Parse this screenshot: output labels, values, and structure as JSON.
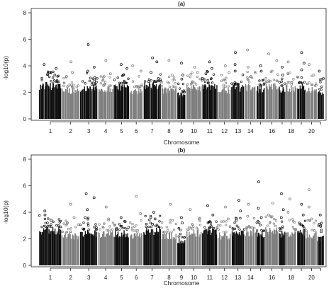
{
  "chart_data": [
    {
      "type": "scatter",
      "title": "(a)",
      "xlabel": "Chromosome",
      "ylabel": "-log10(p)",
      "ylim": [
        0,
        8
      ],
      "yticks": [
        0,
        2,
        4,
        6,
        8
      ],
      "grid": false,
      "x_tick_labels": [
        "1",
        "2",
        "3",
        "4",
        "5",
        "6",
        "7",
        "8",
        "9",
        "10",
        "11",
        "12",
        "13",
        "14",
        "16",
        "18",
        "20"
      ],
      "chromosomes": [
        "1",
        "2",
        "3",
        "4",
        "5",
        "6",
        "7",
        "8",
        "9",
        "10",
        "11",
        "12",
        "13",
        "14",
        "15",
        "16",
        "17",
        "18",
        "19",
        "20",
        "21"
      ],
      "chromosome_colors": [
        "#111111",
        "#7f7f7f"
      ],
      "body_max": [
        2.8,
        2.4,
        2.6,
        2.5,
        2.7,
        2.4,
        2.8,
        2.4,
        2.0,
        2.6,
        2.7,
        2.4,
        2.6,
        2.7,
        2.5,
        2.8,
        2.5,
        2.6,
        2.7,
        2.5,
        2.2
      ],
      "top_hits": [
        {
          "chr": "1",
          "values": [
            4.1,
            3.8,
            3.5,
            3.3
          ]
        },
        {
          "chr": "2",
          "values": [
            4.3,
            3.5,
            3.2
          ]
        },
        {
          "chr": "3",
          "values": [
            5.6,
            3.9,
            3.6,
            3.1
          ]
        },
        {
          "chr": "4",
          "values": [
            4.4,
            3.4,
            3.2
          ]
        },
        {
          "chr": "5",
          "values": [
            4.1,
            3.8,
            3.3
          ]
        },
        {
          "chr": "6",
          "values": [
            4.0,
            3.6
          ]
        },
        {
          "chr": "7",
          "values": [
            4.6,
            4.3,
            3.5
          ]
        },
        {
          "chr": "8",
          "values": [
            4.4,
            3.3
          ]
        },
        {
          "chr": "9",
          "values": [
            4.2,
            3.3,
            3.0
          ]
        },
        {
          "chr": "10",
          "values": [
            3.9,
            3.5
          ]
        },
        {
          "chr": "11",
          "values": [
            4.3,
            3.8,
            3.4
          ]
        },
        {
          "chr": "12",
          "values": [
            4.0,
            3.5
          ]
        },
        {
          "chr": "13",
          "values": [
            5.0,
            4.1,
            3.6
          ]
        },
        {
          "chr": "14",
          "values": [
            5.2,
            3.9,
            3.2
          ]
        },
        {
          "chr": "15",
          "values": [
            4.0,
            3.6
          ]
        },
        {
          "chr": "16",
          "values": [
            4.9,
            4.4,
            3.6
          ]
        },
        {
          "chr": "17",
          "values": [
            3.9,
            3.3
          ]
        },
        {
          "chr": "18",
          "values": [
            4.3,
            3.4
          ]
        },
        {
          "chr": "19",
          "values": [
            5.0,
            4.2,
            3.7
          ]
        },
        {
          "chr": "20",
          "values": [
            4.1,
            3.3
          ]
        },
        {
          "chr": "21",
          "values": [
            3.6,
            3.0
          ]
        }
      ]
    },
    {
      "type": "scatter",
      "title": "(b)",
      "xlabel": "Chromosome",
      "ylabel": "-log10(p)",
      "ylim": [
        0,
        8
      ],
      "yticks": [
        0,
        2,
        4,
        6,
        8
      ],
      "grid": false,
      "x_tick_labels": [
        "1",
        "2",
        "3",
        "4",
        "5",
        "6",
        "7",
        "8",
        "9",
        "10",
        "11",
        "12",
        "13",
        "14",
        "16",
        "18",
        "20"
      ],
      "chromosomes": [
        "1",
        "2",
        "3",
        "4",
        "5",
        "6",
        "7",
        "8",
        "9",
        "10",
        "11",
        "12",
        "13",
        "14",
        "15",
        "16",
        "17",
        "18",
        "19",
        "20",
        "21"
      ],
      "chromosome_colors": [
        "#111111",
        "#7f7f7f"
      ],
      "body_max": [
        2.9,
        2.5,
        2.7,
        2.6,
        2.7,
        2.5,
        2.9,
        2.5,
        2.1,
        2.7,
        2.8,
        2.5,
        2.7,
        2.8,
        2.6,
        2.9,
        2.6,
        2.7,
        2.8,
        2.6,
        2.3
      ],
      "top_hits": [
        {
          "chr": "1",
          "values": [
            4.1,
            3.8,
            3.4
          ]
        },
        {
          "chr": "2",
          "values": [
            4.6,
            3.6,
            3.2
          ]
        },
        {
          "chr": "3",
          "values": [
            5.4,
            5.1,
            4.2,
            3.6
          ]
        },
        {
          "chr": "4",
          "values": [
            4.4,
            3.5
          ]
        },
        {
          "chr": "5",
          "values": [
            3.6,
            3.3
          ]
        },
        {
          "chr": "6",
          "values": [
            5.2,
            3.9
          ]
        },
        {
          "chr": "7",
          "values": [
            4.0,
            3.5,
            3.1
          ]
        },
        {
          "chr": "8",
          "values": [
            4.6,
            3.4
          ]
        },
        {
          "chr": "9",
          "values": [
            3.6,
            3.2
          ]
        },
        {
          "chr": "10",
          "values": [
            4.2,
            3.5
          ]
        },
        {
          "chr": "11",
          "values": [
            4.5,
            3.8,
            3.3
          ]
        },
        {
          "chr": "12",
          "values": [
            4.4,
            3.5
          ]
        },
        {
          "chr": "13",
          "values": [
            4.9,
            4.1,
            3.4
          ]
        },
        {
          "chr": "14",
          "values": [
            4.6,
            3.7
          ]
        },
        {
          "chr": "15",
          "values": [
            6.3,
            4.3,
            3.6
          ]
        },
        {
          "chr": "16",
          "values": [
            4.7,
            3.8
          ]
        },
        {
          "chr": "17",
          "values": [
            5.4,
            4.2,
            3.6
          ]
        },
        {
          "chr": "18",
          "values": [
            5.0,
            4.0
          ]
        },
        {
          "chr": "19",
          "values": [
            4.6,
            3.8
          ]
        },
        {
          "chr": "20",
          "values": [
            5.7,
            4.4,
            3.5
          ]
        },
        {
          "chr": "21",
          "values": [
            3.8,
            3.1
          ]
        }
      ]
    }
  ]
}
